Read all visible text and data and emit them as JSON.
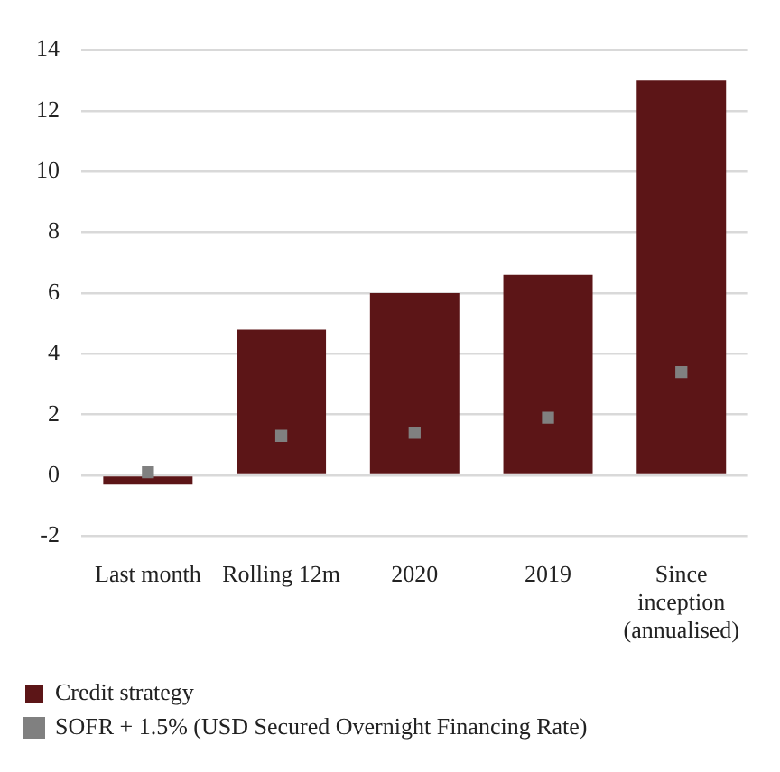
{
  "chart_data": {
    "type": "bar",
    "categories": [
      "Last month",
      "Rolling 12m",
      "2020",
      "2019",
      "Since inception (annualised)"
    ],
    "series": [
      {
        "name": "Credit strategy",
        "color": "#5c1517",
        "values": [
          -0.3,
          4.8,
          6.0,
          6.6,
          13.0
        ]
      },
      {
        "name": "SOFR + 1.5% (USD Secured Overnight Financing Rate)",
        "type": "scatter",
        "marker": "square",
        "color": "#808080",
        "values": [
          0.1,
          1.3,
          1.4,
          1.9,
          3.4
        ]
      }
    ],
    "ylim": [
      -2,
      14
    ],
    "yticks": [
      -2,
      0,
      2,
      4,
      6,
      8,
      10,
      12,
      14
    ],
    "grid": "y",
    "legend": "bottom"
  }
}
